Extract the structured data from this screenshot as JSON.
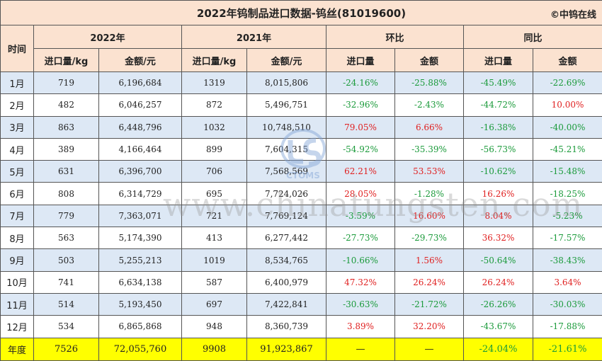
{
  "title": "2022年钨制品进口数据-钨丝(81019600)",
  "brand": "©中钨在线",
  "headers": {
    "time": "时间",
    "y2022": "2022年",
    "y2021": "2021年",
    "mom": "环比",
    "yoy": "同比",
    "qty": "进口量/kg",
    "amount": "金额/元",
    "qty_short": "进口量",
    "amount_short": "金额"
  },
  "rows": [
    {
      "month": "1月",
      "q22": "719",
      "a22": "6,196,684",
      "q21": "1319",
      "a21": "8,015,806",
      "mq": "-24.16%",
      "ma": "-25.88%",
      "yq": "-45.49%",
      "ya": "-22.69%"
    },
    {
      "month": "2月",
      "q22": "482",
      "a22": "6,046,257",
      "q21": "872",
      "a21": "5,496,751",
      "mq": "-32.96%",
      "ma": "-2.43%",
      "yq": "-44.72%",
      "ya": "10.00%"
    },
    {
      "month": "3月",
      "q22": "863",
      "a22": "6,448,796",
      "q21": "1032",
      "a21": "10,748,510",
      "mq": "79.05%",
      "ma": "6.66%",
      "yq": "-16.38%",
      "ya": "-40.00%"
    },
    {
      "month": "4月",
      "q22": "389",
      "a22": "4,166,464",
      "q21": "899",
      "a21": "7,604,315",
      "mq": "-54.92%",
      "ma": "-35.39%",
      "yq": "-56.73%",
      "ya": "-45.21%"
    },
    {
      "month": "5月",
      "q22": "631",
      "a22": "6,396,700",
      "q21": "706",
      "a21": "7,568,569",
      "mq": "62.21%",
      "ma": "53.53%",
      "yq": "-10.62%",
      "ya": "-15.48%"
    },
    {
      "month": "6月",
      "q22": "808",
      "a22": "6,314,729",
      "q21": "695",
      "a21": "7,724,026",
      "mq": "28.05%",
      "ma": "-1.28%",
      "yq": "16.26%",
      "ya": "-18.25%"
    },
    {
      "month": "7月",
      "q22": "779",
      "a22": "7,363,071",
      "q21": "721",
      "a21": "7,769,124",
      "mq": "-3.59%",
      "ma": "16.60%",
      "yq": "8.04%",
      "ya": "-5.23%"
    },
    {
      "month": "8月",
      "q22": "563",
      "a22": "5,174,390",
      "q21": "413",
      "a21": "6,277,442",
      "mq": "-27.73%",
      "ma": "-29.73%",
      "yq": "36.32%",
      "ya": "-17.57%"
    },
    {
      "month": "9月",
      "q22": "503",
      "a22": "5,255,213",
      "q21": "1019",
      "a21": "8,534,765",
      "mq": "-10.66%",
      "ma": "1.56%",
      "yq": "-50.64%",
      "ya": "-38.43%"
    },
    {
      "month": "10月",
      "q22": "741",
      "a22": "6,634,138",
      "q21": "587",
      "a21": "6,400,979",
      "mq": "47.32%",
      "ma": "26.24%",
      "yq": "26.24%",
      "ya": "3.64%"
    },
    {
      "month": "11月",
      "q22": "514",
      "a22": "5,193,450",
      "q21": "697",
      "a21": "7,422,841",
      "mq": "-30.63%",
      "ma": "-21.72%",
      "yq": "-26.26%",
      "ya": "-30.03%"
    },
    {
      "month": "12月",
      "q22": "534",
      "a22": "6,865,868",
      "q21": "948",
      "a21": "8,360,739",
      "mq": "3.89%",
      "ma": "32.20%",
      "yq": "-43.67%",
      "ya": "-17.88%"
    }
  ],
  "total": {
    "label": "年度",
    "q22": "7526",
    "a22": "72,055,760",
    "q21": "9908",
    "a21": "91,923,867",
    "mq": "—",
    "ma": "—",
    "yq": "-24.04%",
    "ya": "-21.61%"
  },
  "watermark": "www.chinatungsten.com",
  "logo_text": "CTOMS",
  "colors": {
    "header_bg": "#fbe2d0",
    "odd_row_bg": "#dde8f5",
    "total_bg": "#ffff00",
    "positive": "#e02020",
    "negative": "#1a9a3a"
  }
}
